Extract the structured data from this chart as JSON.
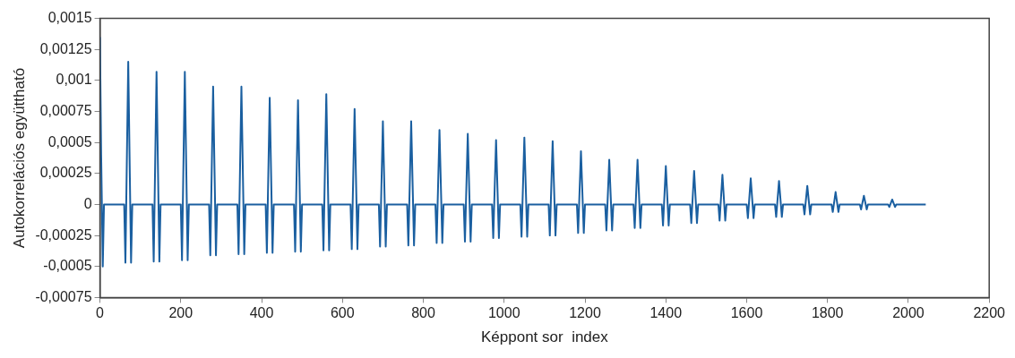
{
  "chart_data": {
    "type": "line",
    "xlabel": "Képpont sor  index",
    "ylabel": "Autokorrelációs együttható",
    "xlim": [
      0,
      2200
    ],
    "xticks": [
      0,
      200,
      400,
      600,
      800,
      1000,
      1200,
      1400,
      1600,
      1800,
      2000,
      2200
    ],
    "ylim": [
      -0.00075,
      0.0015
    ],
    "yticks": [
      {
        "value": -0.00075,
        "label": "-0,00075"
      },
      {
        "value": -0.0005,
        "label": "-0,0005"
      },
      {
        "value": -0.00025,
        "label": "-0,00025"
      },
      {
        "value": 0,
        "label": "0"
      },
      {
        "value": 0.00025,
        "label": "0,00025"
      },
      {
        "value": 0.0005,
        "label": "0,0005"
      },
      {
        "value": 0.00075,
        "label": "0,00075"
      },
      {
        "value": 0.001,
        "label": "0,001"
      },
      {
        "value": 0.00125,
        "label": "0,00125"
      },
      {
        "value": 0.0015,
        "label": "0,0015"
      }
    ],
    "grid": false,
    "legend": false,
    "marker": "none",
    "line_style": "solid",
    "x": [
      0,
      3,
      7,
      10,
      60,
      63,
      70,
      77,
      80,
      130,
      133,
      140,
      147,
      150,
      200,
      203,
      210,
      217,
      220,
      270,
      273,
      280,
      287,
      290,
      340,
      343,
      350,
      357,
      360,
      410,
      413,
      420,
      427,
      430,
      480,
      483,
      490,
      497,
      500,
      550,
      553,
      560,
      567,
      570,
      620,
      623,
      630,
      637,
      640,
      690,
      693,
      700,
      707,
      710,
      760,
      763,
      770,
      777,
      780,
      830,
      833,
      840,
      847,
      850,
      900,
      903,
      910,
      917,
      920,
      970,
      973,
      980,
      987,
      990,
      1040,
      1043,
      1050,
      1057,
      1060,
      1110,
      1113,
      1120,
      1127,
      1130,
      1180,
      1183,
      1190,
      1197,
      1200,
      1250,
      1253,
      1260,
      1267,
      1270,
      1320,
      1323,
      1330,
      1337,
      1340,
      1390,
      1393,
      1400,
      1407,
      1410,
      1460,
      1463,
      1470,
      1477,
      1480,
      1530,
      1533,
      1540,
      1547,
      1550,
      1600,
      1603,
      1610,
      1617,
      1620,
      1670,
      1673,
      1680,
      1687,
      1690,
      1740,
      1743,
      1750,
      1757,
      1760,
      1810,
      1813,
      1820,
      1827,
      1830,
      1880,
      1883,
      1890,
      1897,
      1900,
      1950,
      1953,
      1960,
      1967,
      1970,
      2043
    ],
    "series": [
      {
        "color": "#1a5fa0",
        "values": [
          0.00135,
          0.0004,
          -0.0005,
          0,
          0,
          -0.00047,
          0.00115,
          -0.00047,
          0,
          0,
          -0.00046,
          0.00107,
          -0.00046,
          0,
          0,
          -0.00045,
          0.00107,
          -0.00045,
          0,
          0,
          -0.00041,
          0.00095,
          -0.00041,
          0,
          0,
          -0.0004,
          0.00095,
          -0.0004,
          0,
          0,
          -0.00039,
          0.00086,
          -0.00039,
          0,
          0,
          -0.00038,
          0.00084,
          -0.00038,
          0,
          0,
          -0.00037,
          0.00089,
          -0.00037,
          0,
          0,
          -0.00036,
          0.00077,
          -0.00036,
          0,
          0,
          -0.00034,
          0.00067,
          -0.00034,
          0,
          0,
          -0.00033,
          0.00067,
          -0.00033,
          0,
          0,
          -0.00031,
          0.0006,
          -0.00031,
          0,
          0,
          -0.0003,
          0.00057,
          -0.0003,
          0,
          0,
          -0.00027,
          0.00052,
          -0.00027,
          0,
          0,
          -0.00026,
          0.00054,
          -0.00026,
          0,
          0,
          -0.00025,
          0.00051,
          -0.00025,
          0,
          0,
          -0.00023,
          0.00043,
          -0.00023,
          0,
          0,
          -0.00021,
          0.00036,
          -0.00021,
          0,
          0,
          -0.00019,
          0.00036,
          -0.00019,
          0,
          0,
          -0.00017,
          0.00031,
          -0.00017,
          0,
          0,
          -0.00015,
          0.00027,
          -0.00015,
          0,
          0,
          -0.00013,
          0.00024,
          -0.00013,
          0,
          0,
          -0.00011,
          0.00021,
          -0.00011,
          0,
          0,
          -0.0001,
          0.00019,
          -0.0001,
          0,
          0,
          -8e-05,
          0.00015,
          -8e-05,
          0,
          0,
          -6e-05,
          0.0001,
          -6e-05,
          0,
          0,
          -4e-05,
          7e-05,
          -4e-05,
          0,
          0,
          -2e-05,
          4e-05,
          -2e-05,
          0,
          0
        ]
      }
    ]
  }
}
